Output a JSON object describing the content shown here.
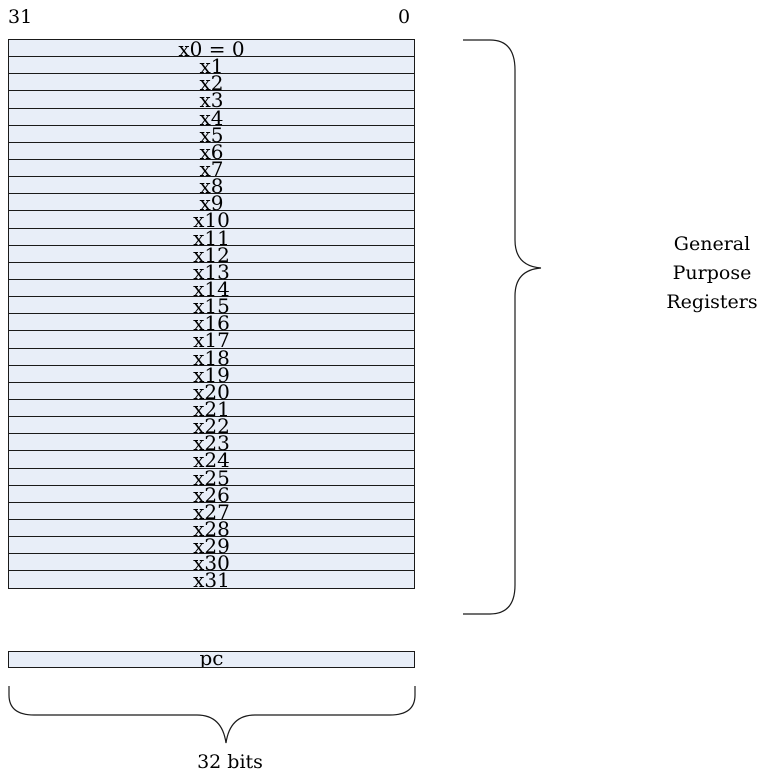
{
  "bit_labels": {
    "high": "31",
    "low": "0"
  },
  "registers": [
    "x0 = 0",
    "x1",
    "x2",
    "x3",
    "x4",
    "x5",
    "x6",
    "x7",
    "x8",
    "x9",
    "x10",
    "x11",
    "x12",
    "x13",
    "x14",
    "x15",
    "x16",
    "x17",
    "x18",
    "x19",
    "x20",
    "x21",
    "x22",
    "x23",
    "x24",
    "x25",
    "x26",
    "x27",
    "x28",
    "x29",
    "x30",
    "x31"
  ],
  "pc": "pc",
  "group_label": {
    "line1": "General",
    "line2": "Purpose",
    "line3": "Registers"
  },
  "width_label": "32 bits",
  "colors": {
    "register_fill": "#e8eef8",
    "border": "#1a1a1a"
  }
}
